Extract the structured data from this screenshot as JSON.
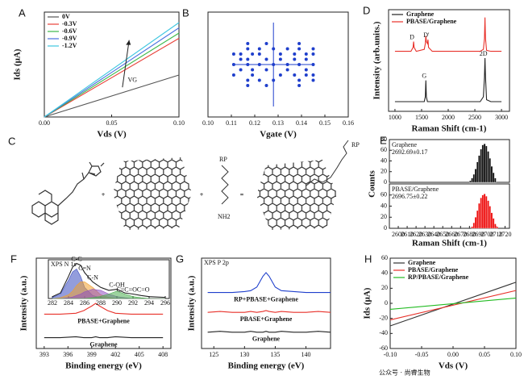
{
  "chart_data": [
    {
      "type": "line",
      "panel": "A",
      "xlabel": "Vds (V)",
      "ylabel": "Ids (μA)",
      "annotation": "VG",
      "xlim": [
        0,
        0.1
      ],
      "xticks": [
        {
          "value": 0,
          "label": "0.00"
        },
        0.05,
        {
          "value": 0.1,
          "label": "0.10"
        }
      ],
      "ylim": [
        0,
        60
      ],
      "legend": "upper left",
      "x": [
        0,
        0.1
      ],
      "series": [
        {
          "name": "0V",
          "color": "#555555",
          "values": [
            0,
            24
          ]
        },
        {
          "name": "-0.3V",
          "color": "#e8413a",
          "values": [
            0,
            45
          ]
        },
        {
          "name": "-0.6V",
          "color": "#3cb84a",
          "values": [
            0,
            48
          ]
        },
        {
          "name": "-0.9V",
          "color": "#4a6fe0",
          "values": [
            0,
            51
          ]
        },
        {
          "name": "-1.2V",
          "color": "#3fc6e0",
          "values": [
            0,
            54
          ]
        }
      ]
    },
    {
      "type": "scatter",
      "panel": "B",
      "xlabel": "Vgate (V)",
      "color": "#1f3fcc",
      "xlim": [
        0.1,
        0.16
      ],
      "xticks": [
        {
          "value": 0.1,
          "label": "0.10"
        },
        0.11,
        0.12,
        0.13,
        0.14,
        0.15,
        0.16
      ],
      "ylim": [
        0,
        1
      ],
      "x": [
        0.111,
        0.111,
        0.111,
        0.114,
        0.114,
        0.114,
        0.117,
        0.117,
        0.117,
        0.117,
        0.117,
        0.117,
        0.119,
        0.119,
        0.119,
        0.122,
        0.122,
        0.122,
        0.122,
        0.125,
        0.125,
        0.125,
        0.125,
        0.128,
        0.128,
        0.128,
        0.131,
        0.131,
        0.131,
        0.134,
        0.134,
        0.134,
        0.137,
        0.137,
        0.137,
        0.139,
        0.139,
        0.139,
        0.139,
        0.139,
        0.142,
        0.142,
        0.142,
        0.142,
        0.145,
        0.145,
        0.145,
        0.145,
        0.145
      ],
      "y": [
        0.5,
        0.6,
        0.4,
        0.55,
        0.45,
        0.6,
        0.65,
        0.35,
        0.5,
        0.7,
        0.3,
        0.55,
        0.6,
        0.4,
        0.45,
        0.5,
        0.6,
        0.35,
        0.65,
        0.55,
        0.45,
        0.7,
        0.3,
        0.5,
        0.65,
        0.35,
        0.6,
        0.4,
        0.55,
        0.5,
        0.65,
        0.45,
        0.6,
        0.4,
        0.55,
        0.7,
        0.3,
        0.5,
        0.65,
        0.35,
        0.6,
        0.45,
        0.55,
        0.4,
        0.5,
        0.6,
        0.4,
        0.65,
        0.35
      ],
      "errorbar": {
        "x": 0.128,
        "y": 0.5,
        "xerr": 0.017,
        "yerr": 0.4
      }
    },
    {
      "type": "line",
      "panel": "D",
      "xlabel": "Raman Shift  (cm-1)",
      "ylabel": "Intensity (arb.units.)",
      "xlim": [
        880,
        3150
      ],
      "xticks": [
        1000,
        1500,
        2000,
        2500,
        3000
      ],
      "ylim": [
        0,
        1.05
      ],
      "legend": "upper left",
      "x": [
        1000,
        1300,
        1340,
        1350,
        1360,
        1400,
        1550,
        1570,
        1580,
        1590,
        1610,
        1620,
        1630,
        1700,
        2600,
        2660,
        2680,
        2690,
        2700,
        2720,
        2800,
        3000
      ],
      "series": [
        {
          "name": "Graphene",
          "color": "#222222",
          "values": [
            0.1,
            0.1,
            0.1,
            0.1,
            0.1,
            0.1,
            0.1,
            0.15,
            0.32,
            0.15,
            0.1,
            0.1,
            0.1,
            0.1,
            0.1,
            0.15,
            0.35,
            0.55,
            0.35,
            0.12,
            0.1,
            0.1
          ],
          "peaks": [
            {
              "label": "G",
              "x": 1580
            },
            {
              "label": "2D",
              "x": 2690
            }
          ]
        },
        {
          "name": "PBASE/Graphene",
          "color": "#e8312a",
          "values": [
            0.62,
            0.62,
            0.66,
            0.72,
            0.66,
            0.62,
            0.64,
            0.7,
            0.78,
            0.72,
            0.7,
            0.74,
            0.66,
            0.62,
            0.62,
            0.64,
            0.75,
            0.97,
            0.75,
            0.63,
            0.62,
            0.62
          ],
          "peaks": [
            {
              "label": "D",
              "x": 1350
            },
            {
              "label": "D'",
              "x": 1620
            }
          ]
        }
      ]
    },
    {
      "type": "histogram",
      "panel": "E",
      "ylabel": "Counts",
      "color": "#111111",
      "annotation": [
        "Graphene",
        "2692.69±0.17"
      ],
      "xlim": [
        2590,
        2725
      ],
      "ylim": [
        0,
        80
      ],
      "yticks": [
        0,
        20,
        40,
        60,
        80
      ],
      "bins": [
        2680,
        2682,
        2684,
        2686,
        2688,
        2690,
        2692,
        2694,
        2696,
        2698,
        2700,
        2702,
        2704,
        2706,
        2708,
        2710
      ],
      "counts": [
        3,
        8,
        15,
        25,
        38,
        50,
        62,
        70,
        72,
        68,
        58,
        45,
        30,
        18,
        8
      ]
    },
    {
      "type": "histogram",
      "xlabel": "Raman Shift  (cm-1)",
      "color": "#ee1111",
      "annotation": [
        "PBASE/Graphene",
        "2696.75±0.22"
      ],
      "xlim": [
        2590,
        2725
      ],
      "xticks": [
        2600,
        2610,
        2620,
        2630,
        2640,
        2650,
        2660,
        2670,
        2680,
        2690,
        2700,
        2710,
        2720
      ],
      "ylim": [
        0,
        80
      ],
      "yticks": [
        0,
        20,
        40,
        60
      ],
      "bins": [
        2682,
        2684,
        2686,
        2688,
        2690,
        2692,
        2694,
        2696,
        2698,
        2700,
        2702,
        2704,
        2706,
        2708,
        2710,
        2712
      ],
      "counts": [
        3,
        10,
        20,
        32,
        45,
        55,
        60,
        62,
        58,
        50,
        40,
        28,
        18,
        8,
        3
      ]
    },
    {
      "type": "line",
      "panel": "F",
      "xlabel": "Binding energy (eV)",
      "ylabel": "Intensity (a.u.)",
      "series_labels": "inline",
      "xlim": [
        392,
        409
      ],
      "xticks": [
        393,
        396,
        399,
        402,
        405,
        408
      ],
      "ylim": [
        0,
        1
      ],
      "x": [
        393,
        395,
        397,
        398,
        399,
        399.5,
        400,
        401,
        402,
        404,
        406,
        408
      ],
      "series": [
        {
          "name": "PBASE+Graphene",
          "color": "#e8312a",
          "values": [
            0.38,
            0.38,
            0.39,
            0.42,
            0.47,
            0.5,
            0.47,
            0.42,
            0.39,
            0.38,
            0.38,
            0.38
          ]
        },
        {
          "name": "Graphene",
          "color": "#222222",
          "values": [
            0.12,
            0.12,
            0.13,
            0.12,
            0.12,
            0.13,
            0.12,
            0.12,
            0.13,
            0.12,
            0.12,
            0.12
          ]
        }
      ]
    },
    {
      "type": "line",
      "title": "XPS N 1s",
      "xlim": [
        281.5,
        296.5
      ],
      "xticks": [
        282,
        284,
        286,
        288,
        290,
        292,
        294,
        296
      ],
      "ylim": [
        0,
        1.05
      ],
      "x": [
        282,
        283,
        284,
        284.5,
        285,
        285.5,
        286,
        287,
        288,
        289,
        290,
        291,
        292,
        293,
        294,
        296
      ],
      "series": [
        {
          "color": "#3b4cc0",
          "fill": true,
          "values": [
            0.03,
            0.12,
            0.5,
            0.72,
            0.8,
            0.6,
            0.3,
            0.08,
            0.02,
            0,
            0,
            0,
            0,
            0,
            0,
            0
          ]
        },
        {
          "color": "#f0a030",
          "fill": true,
          "values": [
            0,
            0.02,
            0.1,
            0.2,
            0.35,
            0.45,
            0.45,
            0.3,
            0.1,
            0.03,
            0,
            0,
            0,
            0,
            0,
            0
          ]
        },
        {
          "color": "#9050c0",
          "fill": true,
          "values": [
            0,
            0,
            0.02,
            0.04,
            0.08,
            0.12,
            0.18,
            0.25,
            0.22,
            0.12,
            0.05,
            0.02,
            0,
            0,
            0,
            0
          ]
        },
        {
          "color": "#4caf50",
          "fill": true,
          "values": [
            0,
            0,
            0,
            0,
            0,
            0,
            0,
            0.02,
            0.06,
            0.12,
            0.2,
            0.12,
            0.05,
            0.02,
            0,
            0
          ]
        },
        {
          "color": "#222222",
          "values": [
            0.05,
            0.15,
            0.6,
            0.85,
            0.95,
            0.9,
            0.7,
            0.45,
            0.3,
            0.22,
            0.25,
            0.15,
            0.12,
            0.08,
            0.05,
            0.03
          ],
          "peaks": [
            {
              "label": "C-C",
              "x": 285
            },
            {
              "label": "C=N",
              "x": 286
            },
            {
              "label": "C-N",
              "x": 287
            },
            {
              "label": "C-OH",
              "x": 290
            },
            {
              "label": "C=C=OC=O",
              "x": 292
            }
          ]
        }
      ]
    },
    {
      "type": "line",
      "panel": "G",
      "title": "XPS P 2p",
      "xlabel": "Binding energy (eV)",
      "ylabel": "Intensity (a.u.)",
      "series_labels": "inline",
      "xlim": [
        123,
        144
      ],
      "xticks": [
        125,
        130,
        135,
        140
      ],
      "ylim": [
        0,
        1
      ],
      "x": [
        124,
        126,
        128,
        130,
        131,
        132,
        133,
        133.5,
        134,
        135,
        136,
        138,
        140,
        142,
        144
      ],
      "series": [
        {
          "name": "RP+PBASE+Graphene",
          "color": "#1f3fcc",
          "values": [
            0.62,
            0.62,
            0.62,
            0.63,
            0.64,
            0.68,
            0.8,
            0.84,
            0.8,
            0.68,
            0.64,
            0.63,
            0.62,
            0.62,
            0.62
          ]
        },
        {
          "name": "PBASE+Graphene",
          "color": "#e8312a",
          "values": [
            0.4,
            0.41,
            0.4,
            0.4,
            0.41,
            0.4,
            0.41,
            0.42,
            0.41,
            0.4,
            0.41,
            0.4,
            0.4,
            0.41,
            0.4
          ]
        },
        {
          "name": "Graphene",
          "color": "#222222",
          "values": [
            0.18,
            0.19,
            0.18,
            0.18,
            0.19,
            0.18,
            0.18,
            0.19,
            0.18,
            0.18,
            0.19,
            0.18,
            0.18,
            0.19,
            0.18
          ]
        }
      ]
    },
    {
      "type": "line",
      "panel": "H",
      "xlabel": "Vds (V)",
      "ylabel": "Ids (μA)",
      "legend": "upper left",
      "xlim": [
        -0.1,
        0.1
      ],
      "xticks": [
        {
          "value": -0.1,
          "label": "-0.10"
        },
        -0.05,
        {
          "value": 0,
          "label": "0.00"
        },
        0.05,
        {
          "value": 0.1,
          "label": "0.10"
        }
      ],
      "ylim": [
        -60,
        60
      ],
      "yticks": [
        -60,
        -40,
        -20,
        0,
        20,
        40,
        60
      ],
      "x": [
        -0.1,
        0.1
      ],
      "series": [
        {
          "name": "Graphene",
          "color": "#333333",
          "values": [
            -30,
            28
          ]
        },
        {
          "name": "PBASE/Graphene",
          "color": "#e8312a",
          "values": [
            -22,
            17
          ]
        },
        {
          "name": "RP/PBASE/Graphene",
          "color": "#22bb22",
          "values": [
            -8,
            7
          ]
        }
      ]
    }
  ],
  "scheme": {
    "panel": "C",
    "labels": [
      "RP",
      "NH2",
      "RP"
    ]
  },
  "watermark": "公众号 · 尚睿生物"
}
